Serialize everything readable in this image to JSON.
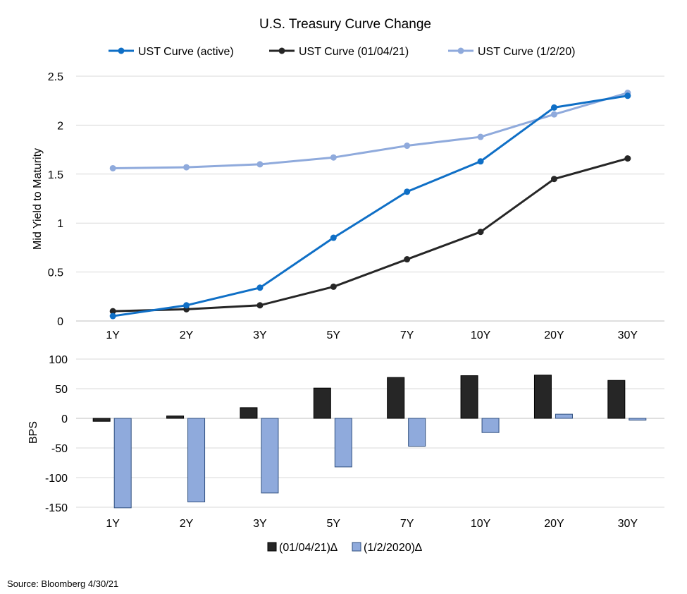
{
  "source_note": "Source: Bloomberg 4/30/21",
  "chart_data": [
    {
      "type": "line",
      "title": "U.S. Treasury Curve Change",
      "xlabel": "",
      "ylabel": "Mid Yield to Maturity",
      "categories": [
        "1Y",
        "2Y",
        "3Y",
        "5Y",
        "7Y",
        "10Y",
        "20Y",
        "30Y"
      ],
      "ylim": [
        0,
        2.5
      ],
      "yticks": [
        "0",
        "0.5",
        "1",
        "1.5",
        "2",
        "2.5"
      ],
      "grid": true,
      "legend_position": "top",
      "series": [
        {
          "name": "UST Curve (active)",
          "color": "#0F6FC6",
          "values": [
            0.05,
            0.16,
            0.34,
            0.85,
            1.32,
            1.63,
            2.18,
            2.3
          ]
        },
        {
          "name": "UST Curve (01/04/21)",
          "color": "#262626",
          "values": [
            0.1,
            0.12,
            0.16,
            0.35,
            0.63,
            0.91,
            1.45,
            1.66
          ]
        },
        {
          "name": "UST Curve (1/2/20)",
          "color": "#8FAADC",
          "values": [
            1.56,
            1.57,
            1.6,
            1.67,
            1.79,
            1.88,
            2.11,
            2.33
          ]
        }
      ]
    },
    {
      "type": "bar",
      "title": "",
      "xlabel": "",
      "ylabel": "BPS",
      "categories": [
        "1Y",
        "2Y",
        "3Y",
        "5Y",
        "7Y",
        "10Y",
        "20Y",
        "30Y"
      ],
      "ylim": [
        -150,
        100
      ],
      "yticks": [
        "-150",
        "-100",
        "-50",
        "0",
        "50",
        "100"
      ],
      "grid": true,
      "legend_position": "bottom",
      "series": [
        {
          "name": "(01/04/21)∆",
          "color": "#262626",
          "values": [
            -5,
            4,
            18,
            51,
            69,
            72,
            73,
            64
          ]
        },
        {
          "name": "(1/2/2020)∆",
          "color": "#8FAADC",
          "values": [
            -151,
            -141,
            -126,
            -82,
            -47,
            -24,
            7,
            -3
          ]
        }
      ]
    }
  ]
}
